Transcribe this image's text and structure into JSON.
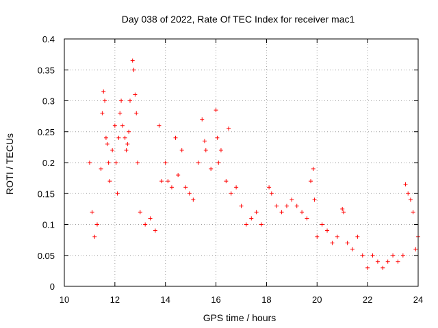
{
  "chart_data": {
    "type": "scatter",
    "title": "Day 038 of 2022, Rate Of TEC Index for receiver mac1",
    "xlabel": "GPS time / hours",
    "ylabel": "ROTI / TECUs",
    "xlim": [
      10,
      24
    ],
    "ylim": [
      0,
      0.4
    ],
    "xticks": [
      10,
      12,
      14,
      16,
      18,
      20,
      22,
      24
    ],
    "yticks": [
      0,
      0.05,
      0.1,
      0.15,
      0.2,
      0.25,
      0.3,
      0.35,
      0.4
    ],
    "xtick_labels": [
      "10",
      "12",
      "14",
      "16",
      "18",
      "20",
      "22",
      "24"
    ],
    "ytick_labels": [
      "0",
      "0.05",
      "0.1",
      "0.15",
      "0.2",
      "0.25",
      "0.3",
      "0.35",
      "0.4"
    ],
    "grid": true,
    "marker": "+",
    "color": "#ff0000",
    "series": [
      {
        "x": [
          11.0,
          11.1,
          11.2,
          11.3,
          11.45,
          11.5,
          11.55,
          11.6,
          11.65,
          11.7,
          11.75,
          11.8,
          11.9,
          12.0,
          12.05,
          12.1,
          12.15,
          12.2,
          12.25,
          12.3,
          12.4,
          12.45,
          12.5,
          12.55,
          12.6,
          12.7,
          12.75,
          12.8,
          12.85,
          12.9,
          13.0,
          13.2,
          13.4,
          13.6,
          13.75,
          13.85,
          14.0,
          14.1,
          14.25,
          14.4,
          14.5,
          14.65,
          14.8,
          14.95,
          15.1,
          15.3,
          15.45,
          15.55,
          15.6,
          15.8,
          16.0,
          16.05,
          16.1,
          16.2,
          16.4,
          16.5,
          16.6,
          16.8,
          17.0,
          17.2,
          17.4,
          17.6,
          17.8,
          18.1,
          18.2,
          18.4,
          18.6,
          18.8,
          19.0,
          19.2,
          19.4,
          19.6,
          19.75,
          19.85,
          19.9,
          20.0,
          20.2,
          20.4,
          20.6,
          20.8,
          21.0,
          21.05,
          21.2,
          21.4,
          21.6,
          21.8,
          22.0,
          22.2,
          22.4,
          22.6,
          22.8,
          23.0,
          23.2,
          23.4,
          23.5,
          23.6,
          23.7,
          23.8,
          23.9,
          24.0
        ],
        "y": [
          0.2,
          0.12,
          0.08,
          0.1,
          0.19,
          0.28,
          0.315,
          0.3,
          0.24,
          0.23,
          0.2,
          0.17,
          0.22,
          0.26,
          0.2,
          0.15,
          0.24,
          0.28,
          0.3,
          0.26,
          0.24,
          0.22,
          0.23,
          0.25,
          0.3,
          0.365,
          0.35,
          0.31,
          0.28,
          0.2,
          0.12,
          0.1,
          0.11,
          0.09,
          0.26,
          0.17,
          0.2,
          0.17,
          0.16,
          0.24,
          0.18,
          0.22,
          0.16,
          0.15,
          0.14,
          0.2,
          0.27,
          0.235,
          0.22,
          0.19,
          0.285,
          0.24,
          0.2,
          0.22,
          0.17,
          0.255,
          0.15,
          0.16,
          0.13,
          0.1,
          0.11,
          0.12,
          0.1,
          0.16,
          0.15,
          0.13,
          0.12,
          0.13,
          0.14,
          0.13,
          0.12,
          0.11,
          0.17,
          0.19,
          0.14,
          0.08,
          0.1,
          0.09,
          0.07,
          0.08,
          0.125,
          0.12,
          0.07,
          0.06,
          0.08,
          0.05,
          0.03,
          0.05,
          0.04,
          0.03,
          0.04,
          0.05,
          0.04,
          0.05,
          0.165,
          0.15,
          0.14,
          0.12,
          0.06,
          0.08
        ]
      }
    ]
  }
}
